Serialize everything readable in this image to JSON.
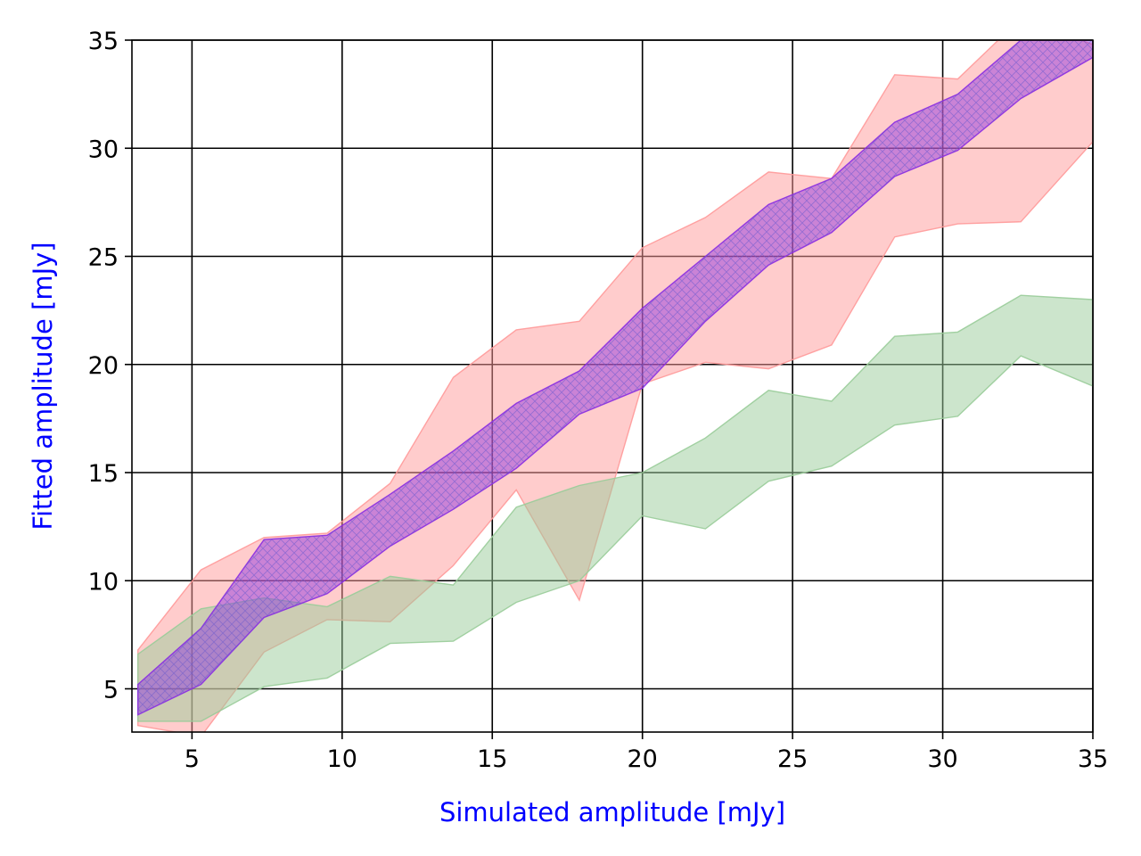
{
  "chart_data": {
    "type": "area",
    "xlabel": "Simulated amplitude [mJy]",
    "ylabel": "Fitted amplitude [mJy]",
    "label_color": "#0000ff",
    "xlim": [
      3,
      35
    ],
    "ylim": [
      3,
      35
    ],
    "xticks": [
      5,
      10,
      15,
      20,
      25,
      30,
      35
    ],
    "yticks": [
      5,
      10,
      15,
      20,
      25,
      30,
      35
    ],
    "grid": true,
    "x": [
      3.2,
      5.3,
      7.4,
      9.5,
      11.6,
      13.7,
      15.8,
      17.9,
      20.0,
      22.1,
      24.2,
      26.3,
      28.4,
      30.5,
      32.6,
      35.0
    ],
    "series": [
      {
        "color": "#ff9999",
        "opacity": 0.5,
        "lower": [
          3.3,
          2.8,
          6.7,
          8.2,
          8.1,
          10.7,
          14.2,
          9.1,
          19.1,
          20.1,
          19.8,
          20.9,
          25.9,
          26.5,
          26.6,
          30.3
        ],
        "upper": [
          6.8,
          10.5,
          12.0,
          12.2,
          14.5,
          19.4,
          21.6,
          22.0,
          25.4,
          26.8,
          28.9,
          28.6,
          33.4,
          33.2,
          36.0,
          34.8
        ]
      },
      {
        "color": "#99cc99",
        "opacity": 0.5,
        "lower": [
          3.5,
          3.5,
          5.1,
          5.5,
          7.1,
          7.2,
          9.0,
          10.0,
          13.0,
          12.4,
          14.6,
          15.3,
          17.2,
          17.6,
          20.4,
          19.0
        ],
        "upper": [
          6.6,
          8.7,
          9.2,
          8.8,
          10.2,
          9.8,
          13.4,
          14.4,
          15.0,
          16.6,
          18.8,
          18.3,
          21.3,
          21.5,
          23.2,
          23.0
        ]
      },
      {
        "color": "#8a2be2",
        "opacity": 0.45,
        "hatch": true,
        "lower": [
          3.8,
          5.2,
          8.3,
          9.4,
          11.6,
          13.3,
          15.2,
          17.7,
          18.9,
          22.0,
          24.6,
          26.1,
          28.7,
          29.9,
          32.3,
          34.2
        ],
        "upper": [
          5.2,
          7.8,
          11.9,
          12.1,
          14.0,
          16.0,
          18.2,
          19.7,
          22.6,
          25.0,
          27.4,
          28.6,
          31.2,
          32.5,
          35.0,
          35.0
        ]
      }
    ]
  }
}
